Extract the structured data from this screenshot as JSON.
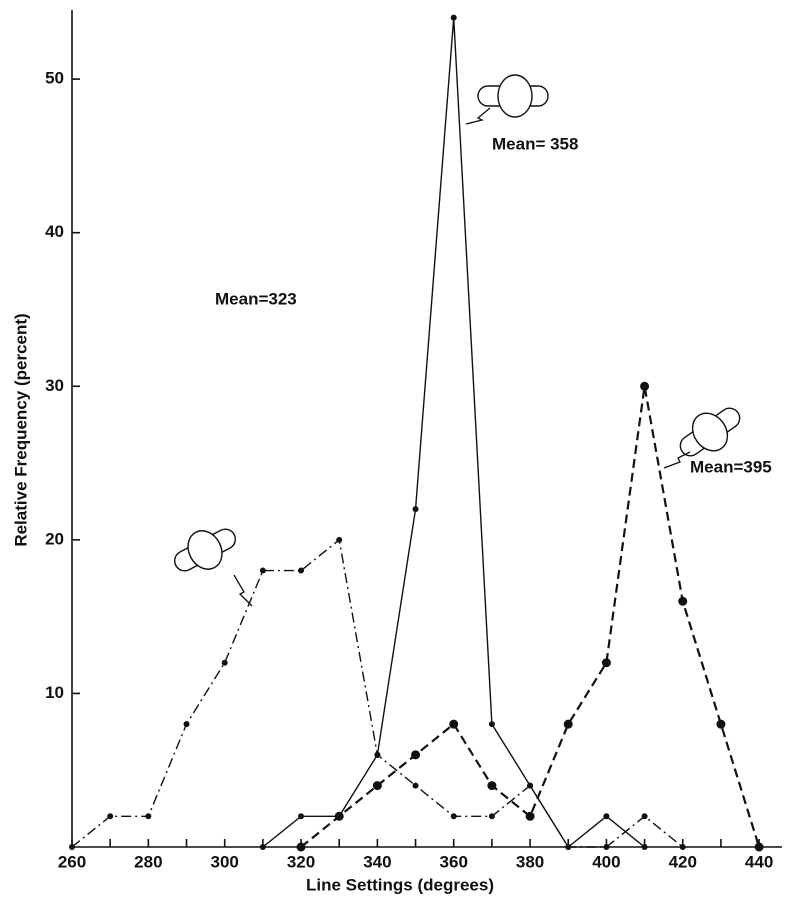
{
  "chart_data": {
    "type": "line",
    "x_label": "Line Settings (degrees)",
    "y_label": "Relative Frequency (percent)",
    "x": [
      260,
      270,
      280,
      290,
      300,
      310,
      320,
      330,
      340,
      350,
      360,
      370,
      380,
      390,
      400,
      410,
      420,
      430,
      440
    ],
    "series": [
      {
        "color": "#111111",
        "line_style": "dashdot",
        "marker_size": 3,
        "values": [
          0,
          2,
          2,
          8,
          12,
          18,
          18,
          20,
          6,
          4,
          2,
          2,
          4,
          0,
          0,
          2,
          0,
          null,
          null
        ]
      },
      {
        "color": "#111111",
        "line_style": "solid",
        "marker_size": 3,
        "values": [
          null,
          null,
          null,
          null,
          null,
          0,
          2,
          2,
          6,
          22,
          54,
          8,
          4,
          0,
          2,
          0,
          null,
          null,
          null
        ]
      },
      {
        "color": "#111111",
        "line_style": "dashed",
        "marker_size": 4.5,
        "values": [
          null,
          null,
          null,
          null,
          null,
          null,
          0,
          2,
          4,
          6,
          8,
          4,
          2,
          8,
          12,
          30,
          16,
          8,
          0
        ]
      }
    ],
    "annotations": [
      "Mean=323",
      "Mean= 358",
      "Mean=395"
    ],
    "xlim": [
      260,
      446
    ],
    "ylim": [
      0,
      54.5
    ],
    "xticks": [
      260,
      280,
      300,
      320,
      340,
      360,
      380,
      400,
      420,
      440
    ],
    "yticks": [
      10,
      20,
      30,
      40,
      50
    ]
  }
}
